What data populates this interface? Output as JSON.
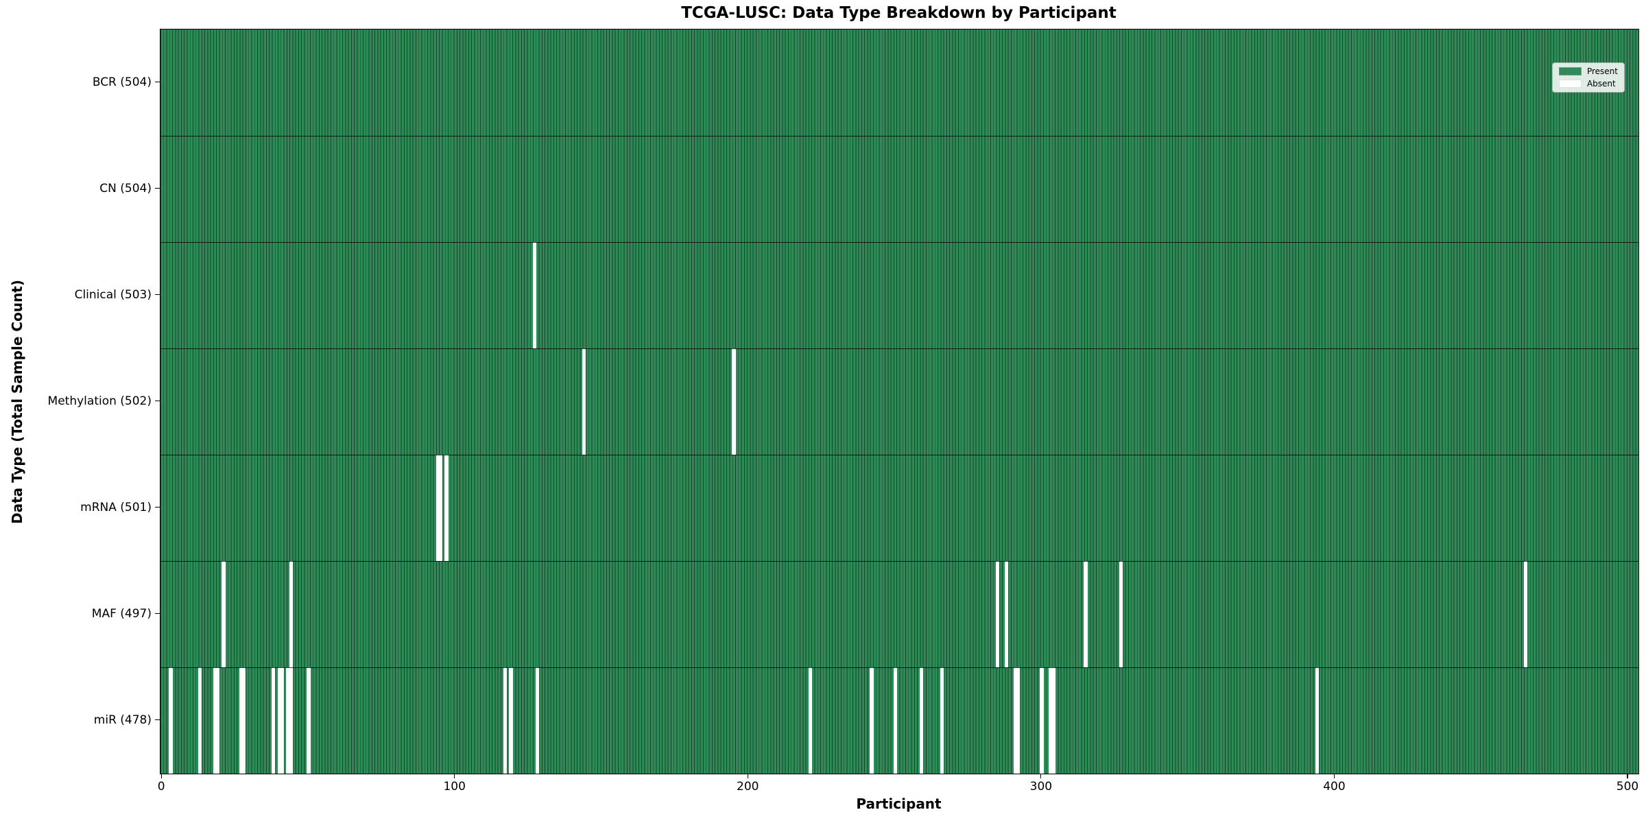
{
  "chart_data": {
    "type": "heatmap",
    "title": "TCGA-LUSC: Data Type Breakdown by Participant",
    "xlabel": "Participant",
    "ylabel": "Data Type (Total Sample Count)",
    "x_ticks": [
      0,
      100,
      200,
      300,
      400,
      500
    ],
    "n_participants": 504,
    "grid": false,
    "colors": {
      "present": "#2e8b57",
      "absent": "#ffffff",
      "bar_edge": "#17432a",
      "text": "#000000"
    },
    "legend": {
      "position": "upper-right",
      "entries": [
        {
          "label": "Present",
          "color": "#2e8b57"
        },
        {
          "label": "Absent",
          "color": "#ffffff"
        }
      ]
    },
    "rows": [
      {
        "label": "BCR (504)",
        "data_type": "BCR",
        "total": 504,
        "absent_participants": []
      },
      {
        "label": "CN (504)",
        "data_type": "CN",
        "total": 504,
        "absent_participants": []
      },
      {
        "label": "Clinical (503)",
        "data_type": "Clinical",
        "total": 503,
        "absent_participants": [
          127
        ]
      },
      {
        "label": "Methylation (502)",
        "data_type": "Methylation",
        "total": 502,
        "absent_participants": [
          144,
          195
        ]
      },
      {
        "label": "mRNA (501)",
        "data_type": "mRNA",
        "total": 501,
        "absent_participants": [
          94,
          95,
          97
        ]
      },
      {
        "label": "MAF (497)",
        "data_type": "MAF",
        "total": 497,
        "absent_participants": [
          21,
          44,
          285,
          288,
          315,
          327,
          465
        ]
      },
      {
        "label": "miR (478)",
        "data_type": "miR",
        "total": 478,
        "absent_participants": [
          3,
          13,
          18,
          19,
          27,
          28,
          38,
          40,
          41,
          43,
          44,
          50,
          117,
          119,
          128,
          221,
          242,
          250,
          259,
          266,
          291,
          292,
          300,
          303,
          304,
          394
        ]
      }
    ]
  }
}
